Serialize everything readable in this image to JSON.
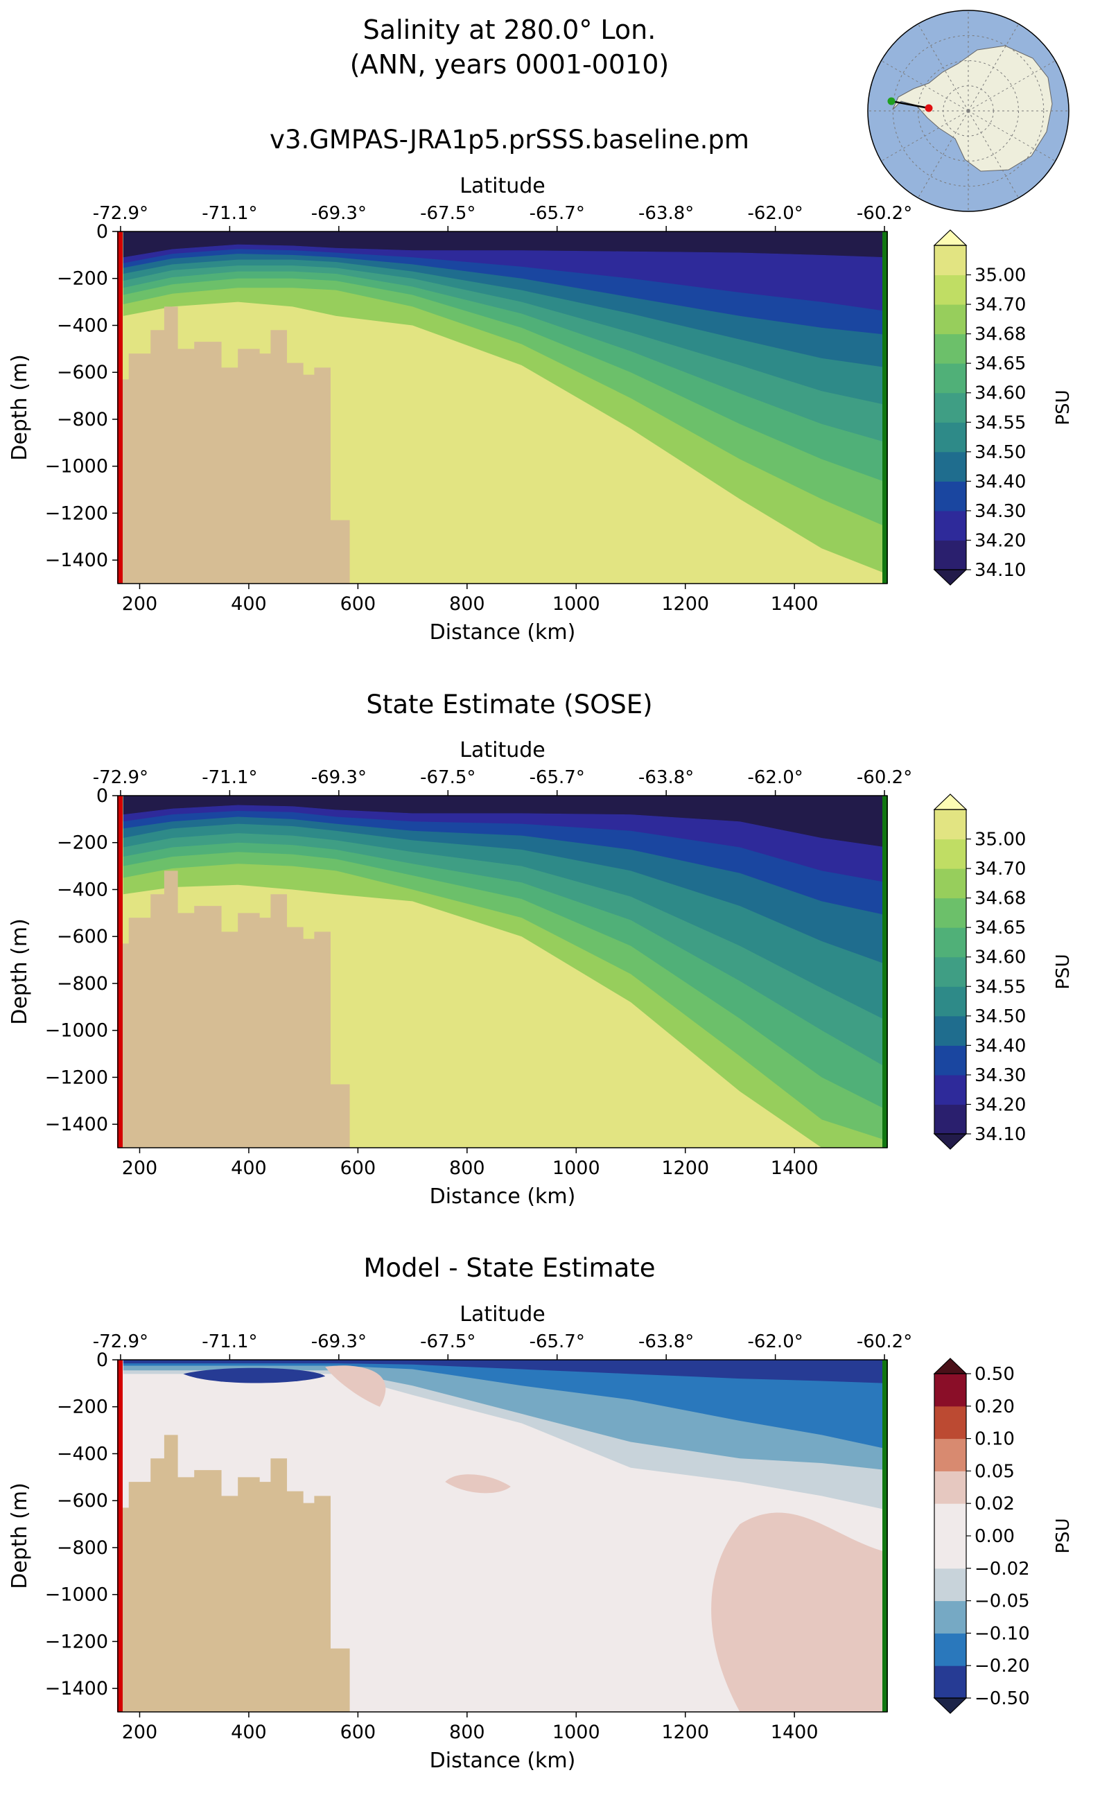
{
  "figure": {
    "title_line1": "Salinity at 280.0° Lon.",
    "title_line2": "(ANN, years 0001-0010)"
  },
  "inset_map": {
    "region": "Antarctica",
    "projection": "south-polar-stereographic",
    "colors": {
      "ocean": "#96b4dc",
      "land": "#eeeedc",
      "start": "#e01010",
      "end": "#20a020"
    }
  },
  "colors": {
    "seafloor": "#d6bd94",
    "section_start_line": "#d40000",
    "section_end_line": "#117711"
  },
  "chart_data": [
    {
      "type": "heatmap",
      "title": "v3.GMPAS-JRA1p5.prSSS.baseline.pm",
      "xlabel": "Distance (km)",
      "ylabel": "Depth (m)",
      "top_axis_label": "Latitude",
      "xlim": [
        160,
        1570
      ],
      "ylim": [
        -1500,
        0
      ],
      "x_ticks": [
        200,
        400,
        600,
        800,
        1000,
        1200,
        1400
      ],
      "y_ticks": [
        0,
        -200,
        -400,
        -600,
        -800,
        -1000,
        -1200,
        -1400
      ],
      "top_ticks": [
        {
          "distance": 165,
          "label": "-72.9°"
        },
        {
          "distance": 365,
          "label": "-71.1°"
        },
        {
          "distance": 565,
          "label": "-69.3°"
        },
        {
          "distance": 765,
          "label": "-67.5°"
        },
        {
          "distance": 965,
          "label": "-65.7°"
        },
        {
          "distance": 1165,
          "label": "-63.8°"
        },
        {
          "distance": 1365,
          "label": "-62.0°"
        },
        {
          "distance": 1565,
          "label": "-60.2°"
        }
      ],
      "colorbar": {
        "label": "PSU",
        "levels": [
          "34.10",
          "34.20",
          "34.30",
          "34.40",
          "34.50",
          "34.55",
          "34.60",
          "34.65",
          "34.68",
          "34.70",
          "35.00"
        ],
        "colors": [
          "#2a1f6e",
          "#2e2a9a",
          "#1a46a0",
          "#1f6d8e",
          "#2e8a88",
          "#3f9e84",
          "#50b078",
          "#6cc06a",
          "#97ce5c",
          "#c0dd64",
          "#e2e482"
        ],
        "over_color": "#fdfcb4",
        "under_color": "#221b4a"
      },
      "contour_depths_at_distance": {
        "distance_km": [
          170,
          260,
          380,
          480,
          560,
          700,
          900,
          1100,
          1300,
          1450,
          1570
        ],
        "boundaries": [
          {
            "level": "34.10",
            "depth_m": [
              -110,
              -75,
              -55,
              -60,
              -70,
              -80,
              -80,
              -85,
              -90,
              -100,
              -110
            ]
          },
          {
            "level": "34.20",
            "depth_m": [
              -135,
              -95,
              -75,
              -80,
              -90,
              -110,
              -150,
              -200,
              -260,
              -300,
              -340
            ]
          },
          {
            "level": "34.30",
            "depth_m": [
              -155,
              -115,
              -95,
              -100,
              -110,
              -140,
              -200,
              -280,
              -360,
              -410,
              -440
            ]
          },
          {
            "level": "34.40",
            "depth_m": [
              -180,
              -140,
              -120,
              -120,
              -130,
              -170,
              -250,
              -350,
              -460,
              -540,
              -580
            ]
          },
          {
            "level": "34.50",
            "depth_m": [
              -210,
              -165,
              -145,
              -145,
              -155,
              -200,
              -300,
              -430,
              -570,
              -680,
              -740
            ]
          },
          {
            "level": "34.55",
            "depth_m": [
              -240,
              -195,
              -170,
              -170,
              -180,
              -235,
              -350,
              -510,
              -690,
              -820,
              -900
            ]
          },
          {
            "level": "34.60",
            "depth_m": [
              -270,
              -225,
              -200,
              -200,
              -210,
              -270,
              -410,
              -600,
              -820,
              -970,
              -1070
            ]
          },
          {
            "level": "34.65",
            "depth_m": [
              -310,
              -265,
              -240,
              -240,
              -250,
              -320,
              -480,
              -710,
              -970,
              -1140,
              -1260
            ]
          },
          {
            "level": "34.68",
            "depth_m": [
              -360,
              -320,
              -300,
              -320,
              -360,
              -400,
              -570,
              -840,
              -1140,
              -1350,
              -1460
            ]
          }
        ]
      }
    },
    {
      "type": "heatmap",
      "title": "State Estimate (SOSE)",
      "xlabel": "Distance (km)",
      "ylabel": "Depth (m)",
      "top_axis_label": "Latitude",
      "xlim": [
        160,
        1570
      ],
      "ylim": [
        -1500,
        0
      ],
      "x_ticks": [
        200,
        400,
        600,
        800,
        1000,
        1200,
        1400
      ],
      "y_ticks": [
        0,
        -200,
        -400,
        -600,
        -800,
        -1000,
        -1200,
        -1400
      ],
      "top_ticks": [
        {
          "distance": 165,
          "label": "-72.9°"
        },
        {
          "distance": 365,
          "label": "-71.1°"
        },
        {
          "distance": 565,
          "label": "-69.3°"
        },
        {
          "distance": 765,
          "label": "-67.5°"
        },
        {
          "distance": 965,
          "label": "-65.7°"
        },
        {
          "distance": 1165,
          "label": "-63.8°"
        },
        {
          "distance": 1365,
          "label": "-62.0°"
        },
        {
          "distance": 1565,
          "label": "-60.2°"
        }
      ],
      "colorbar": {
        "label": "PSU",
        "levels": [
          "34.10",
          "34.20",
          "34.30",
          "34.40",
          "34.50",
          "34.55",
          "34.60",
          "34.65",
          "34.68",
          "34.70",
          "35.00"
        ],
        "colors": [
          "#2a1f6e",
          "#2e2a9a",
          "#1a46a0",
          "#1f6d8e",
          "#2e8a88",
          "#3f9e84",
          "#50b078",
          "#6cc06a",
          "#97ce5c",
          "#c0dd64",
          "#e2e482"
        ],
        "over_color": "#fdfcb4",
        "under_color": "#221b4a"
      },
      "contour_depths_at_distance": {
        "distance_km": [
          170,
          260,
          380,
          480,
          560,
          700,
          900,
          1100,
          1300,
          1450,
          1570
        ],
        "boundaries": [
          {
            "level": "34.10",
            "depth_m": [
              -80,
              -55,
              -40,
              -45,
              -60,
              -75,
              -75,
              -80,
              -110,
              -180,
              -220
            ]
          },
          {
            "level": "34.20",
            "depth_m": [
              -110,
              -80,
              -65,
              -70,
              -90,
              -110,
              -120,
              -150,
              -220,
              -320,
              -370
            ]
          },
          {
            "level": "34.30",
            "depth_m": [
              -140,
              -110,
              -90,
              -100,
              -120,
              -150,
              -170,
              -230,
              -330,
              -450,
              -510
            ]
          },
          {
            "level": "34.40",
            "depth_m": [
              -180,
              -140,
              -120,
              -130,
              -150,
              -190,
              -230,
              -320,
              -470,
              -620,
              -720
            ]
          },
          {
            "level": "34.50",
            "depth_m": [
              -220,
              -180,
              -160,
              -170,
              -190,
              -240,
              -300,
              -430,
              -640,
              -820,
              -960
            ]
          },
          {
            "level": "34.55",
            "depth_m": [
              -260,
              -220,
              -200,
              -210,
              -230,
              -290,
              -370,
              -530,
              -790,
              -1000,
              -1160
            ]
          },
          {
            "level": "34.60",
            "depth_m": [
              -300,
              -260,
              -240,
              -250,
              -270,
              -340,
              -440,
              -640,
              -950,
              -1200,
              -1340
            ]
          },
          {
            "level": "34.65",
            "depth_m": [
              -350,
              -310,
              -290,
              -300,
              -320,
              -400,
              -520,
              -760,
              -1110,
              -1380,
              -1470
            ]
          },
          {
            "level": "34.68",
            "depth_m": [
              -420,
              -390,
              -380,
              -400,
              -420,
              -450,
              -600,
              -880,
              -1260,
              -1500,
              -1500
            ]
          }
        ]
      }
    },
    {
      "type": "heatmap",
      "title": "Model - State Estimate",
      "xlabel": "Distance (km)",
      "ylabel": "Depth (m)",
      "top_axis_label": "Latitude",
      "xlim": [
        160,
        1570
      ],
      "ylim": [
        -1500,
        0
      ],
      "x_ticks": [
        200,
        400,
        600,
        800,
        1000,
        1200,
        1400
      ],
      "y_ticks": [
        0,
        -200,
        -400,
        -600,
        -800,
        -1000,
        -1200,
        -1400
      ],
      "top_ticks": [
        {
          "distance": 165,
          "label": "-72.9°"
        },
        {
          "distance": 365,
          "label": "-71.1°"
        },
        {
          "distance": 565,
          "label": "-69.3°"
        },
        {
          "distance": 765,
          "label": "-67.5°"
        },
        {
          "distance": 965,
          "label": "-65.7°"
        },
        {
          "distance": 1165,
          "label": "-63.8°"
        },
        {
          "distance": 1365,
          "label": "-62.0°"
        },
        {
          "distance": 1565,
          "label": "-60.2°"
        }
      ],
      "colorbar": {
        "label": "PSU",
        "levels": [
          "−0.50",
          "−0.20",
          "−0.10",
          "−0.05",
          "−0.02",
          "0.00",
          "0.02",
          "0.05",
          "0.10",
          "0.20",
          "0.50"
        ],
        "colors": [
          "#263b94",
          "#2a78bc",
          "#76a9c4",
          "#c8d3da",
          "#f0eaea",
          "#f0eaea",
          "#e6c8c0",
          "#d88a70",
          "#bc4a32",
          "#8a0e28"
        ],
        "over_color": "#4a1018",
        "under_color": "#1c2448"
      },
      "contour_depths_at_distance": {
        "distance_km": [
          170,
          260,
          380,
          480,
          560,
          700,
          900,
          1100,
          1300,
          1450,
          1570
        ],
        "boundaries": [
          {
            "level": "−0.20",
            "depth_m": [
              -15,
              -15,
              -15,
              -15,
              -15,
              -20,
              -40,
              -60,
              -80,
              -90,
              -100
            ]
          },
          {
            "level": "−0.10",
            "depth_m": [
              -25,
              -25,
              -25,
              -25,
              -25,
              -40,
              -110,
              -170,
              -260,
              -320,
              -380
            ]
          },
          {
            "level": "−0.05",
            "depth_m": [
              -45,
              -45,
              -45,
              -45,
              -45,
              -110,
              -230,
              -350,
              -420,
              -440,
              -470
            ]
          },
          {
            "level": "−0.02",
            "depth_m": [
              -60,
              -60,
              -60,
              -60,
              -60,
              -150,
              -270,
              -460,
              -520,
              -580,
              -640
            ]
          }
        ]
      }
    }
  ]
}
